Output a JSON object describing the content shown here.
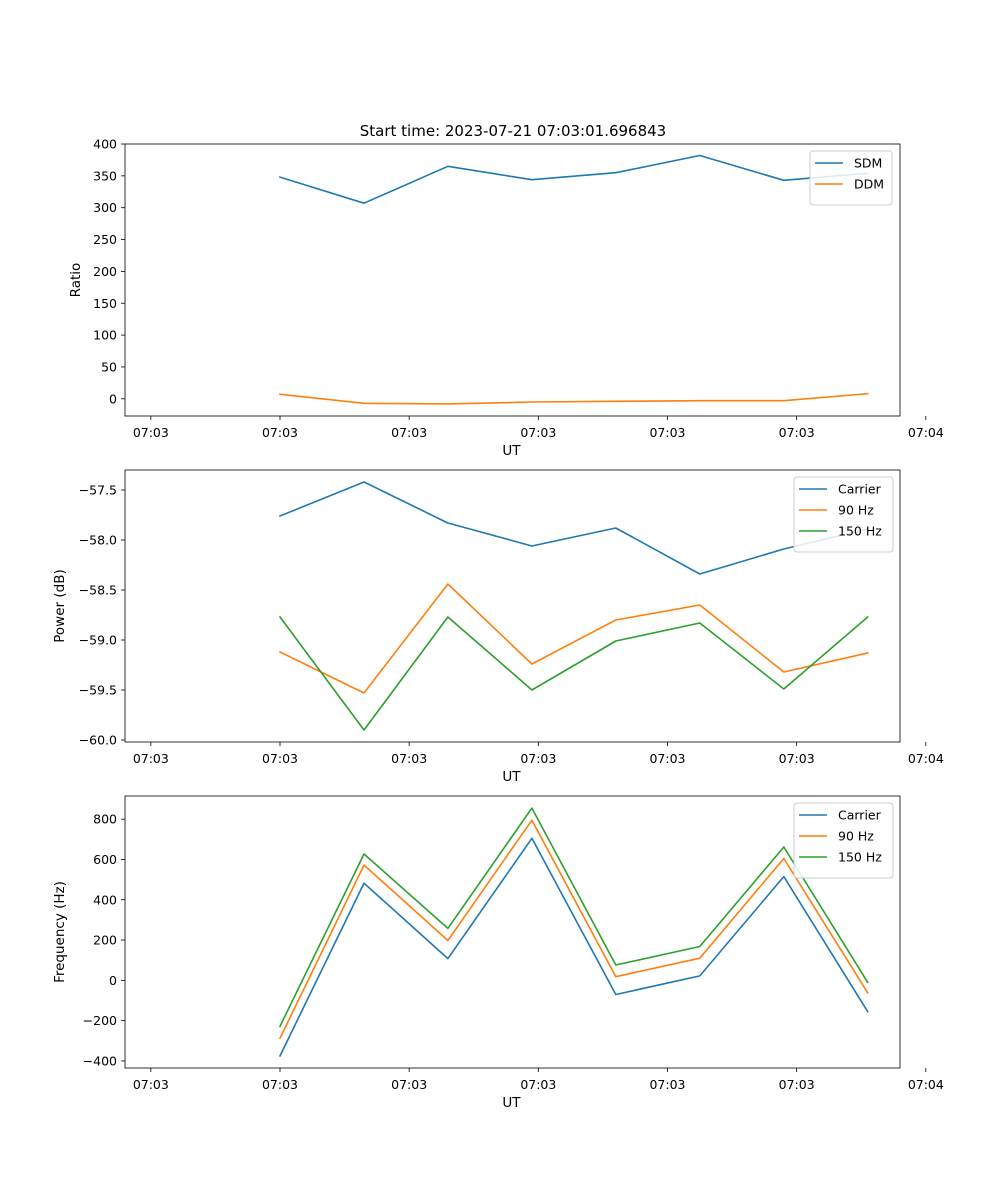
{
  "figure_title": "Start time: 2023-07-21 07:03:01.696843",
  "colors": {
    "blue": "#1f77b4",
    "orange": "#ff7f0e",
    "green": "#2ca02c"
  },
  "chart_data": [
    {
      "type": "line",
      "title": "Start time: 2023-07-21 07:03:01.696843",
      "xlabel": "UT",
      "ylabel": "Ratio",
      "x": [
        1.5,
        2.15,
        2.8,
        3.45,
        4.1,
        4.75,
        5.4,
        6.05
      ],
      "xlim": [
        0.3,
        6.3
      ],
      "xticks": [
        0.5,
        1.5,
        2.5,
        3.5,
        4.5,
        5.5,
        6.5
      ],
      "xticklabels": [
        "07:03",
        "07:03",
        "07:03",
        "07:03",
        "07:03",
        "07:03",
        "07:04"
      ],
      "ylim": [
        -27,
        400
      ],
      "yticks": [
        0,
        50,
        100,
        150,
        200,
        250,
        300,
        350,
        400
      ],
      "yticklabels": [
        "0",
        "50",
        "100",
        "150",
        "200",
        "250",
        "300",
        "350",
        "400"
      ],
      "legend": "top-right",
      "series": [
        {
          "name": "SDM",
          "color": "#1f77b4",
          "values": [
            348,
            307,
            365,
            344,
            355,
            382,
            343,
            354
          ]
        },
        {
          "name": "DDM",
          "color": "#ff7f0e",
          "values": [
            7,
            -7,
            -8,
            -5,
            -4,
            -3,
            -3,
            8
          ]
        }
      ]
    },
    {
      "type": "line",
      "xlabel": "UT",
      "ylabel": "Power (dB)",
      "x": [
        1.5,
        2.15,
        2.8,
        3.45,
        4.1,
        4.75,
        5.4,
        6.05
      ],
      "xlim": [
        0.3,
        6.3
      ],
      "xticks": [
        0.5,
        1.5,
        2.5,
        3.5,
        4.5,
        5.5,
        6.5
      ],
      "xticklabels": [
        "07:03",
        "07:03",
        "07:03",
        "07:03",
        "07:03",
        "07:03",
        "07:04"
      ],
      "ylim": [
        -60.02,
        -57.3
      ],
      "yticks": [
        -60.0,
        -59.5,
        -59.0,
        -58.5,
        -58.0,
        -57.5
      ],
      "yticklabels": [
        "−60.0",
        "−59.5",
        "−59.0",
        "−58.5",
        "−58.0",
        "−57.5"
      ],
      "legend": "top-right",
      "series": [
        {
          "name": "Carrier",
          "color": "#1f77b4",
          "values": [
            -57.76,
            -57.42,
            -57.83,
            -58.06,
            -57.88,
            -58.34,
            -58.09,
            -57.89
          ]
        },
        {
          "name": "90 Hz",
          "color": "#ff7f0e",
          "values": [
            -59.12,
            -59.53,
            -58.44,
            -59.24,
            -58.8,
            -58.65,
            -59.32,
            -59.13
          ]
        },
        {
          "name": "150 Hz",
          "color": "#2ca02c",
          "values": [
            -58.77,
            -59.9,
            -58.77,
            -59.5,
            -59.01,
            -58.83,
            -59.49,
            -58.77
          ]
        }
      ]
    },
    {
      "type": "line",
      "xlabel": "UT",
      "ylabel": "Frequency (Hz)",
      "x": [
        1.5,
        2.15,
        2.8,
        3.45,
        4.1,
        4.75,
        5.4,
        6.05
      ],
      "xlim": [
        0.3,
        6.3
      ],
      "xticks": [
        0.5,
        1.5,
        2.5,
        3.5,
        4.5,
        5.5,
        6.5
      ],
      "xticklabels": [
        "07:03",
        "07:03",
        "07:03",
        "07:03",
        "07:03",
        "07:03",
        "07:04"
      ],
      "ylim": [
        -435,
        915
      ],
      "yticks": [
        -400,
        -200,
        0,
        200,
        400,
        600,
        800
      ],
      "yticklabels": [
        "−400",
        "−200",
        "0",
        "200",
        "400",
        "600",
        "800"
      ],
      "legend": "top-right",
      "series": [
        {
          "name": "Carrier",
          "color": "#1f77b4",
          "values": [
            -375,
            482,
            108,
            705,
            -70,
            22,
            515,
            -155
          ]
        },
        {
          "name": "90 Hz",
          "color": "#ff7f0e",
          "values": [
            -287,
            572,
            198,
            795,
            18,
            110,
            605,
            -62
          ]
        },
        {
          "name": "150 Hz",
          "color": "#2ca02c",
          "values": [
            -228,
            627,
            258,
            855,
            76,
            168,
            662,
            -10
          ]
        }
      ]
    }
  ]
}
